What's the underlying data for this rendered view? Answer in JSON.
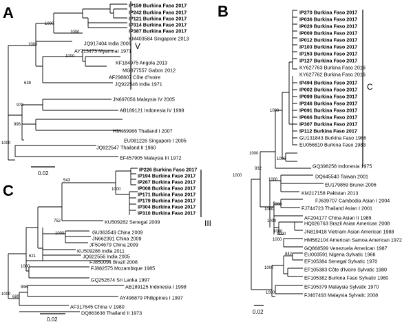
{
  "panels": {
    "A": {
      "label": "A",
      "group_label": "V",
      "scale_label": "0.02",
      "bootstrap": [
        "1000",
        "1000",
        "1000",
        "1000",
        "638",
        "978",
        "996",
        "1000"
      ],
      "taxa": [
        {
          "name": "IP159 Burkina Faso 2017",
          "bold": true
        },
        {
          "name": "IP242 Burkina Faso 2017",
          "bold": true
        },
        {
          "name": "IP121 Burkina Faso 2017",
          "bold": true
        },
        {
          "name": "IP314 Burkina Faso 2017",
          "bold": true
        },
        {
          "name": "IP387 Burkina Faso 2017",
          "bold": true
        },
        {
          "name": "KM403584 Singapore 2013",
          "bold": false
        },
        {
          "name": "JQ917404 India 2009",
          "bold": false
        },
        {
          "name": "AY713473 Myanmar 1971",
          "bold": false
        },
        {
          "name": "KF184975 Angola 2013",
          "bold": false
        },
        {
          "name": "MG877557 Gabon 2012",
          "bold": false
        },
        {
          "name": "AF298807 Côte d'Ivoire",
          "bold": false
        },
        {
          "name": "JQ922546 India 1971",
          "bold": false
        },
        {
          "name": "JN697056 Malaysia IV 2005",
          "bold": false
        },
        {
          "name": "AB189121 Indonesia IV 1998",
          "bold": false
        },
        {
          "name": "HM469966 Thailand I 2007",
          "bold": false
        },
        {
          "name": "EU081226 Singapore I 2005",
          "bold": false
        },
        {
          "name": "JQ922547 Thailand II 1960",
          "bold": false
        },
        {
          "name": "EF457905 Malaysia III 1972",
          "bold": false
        }
      ]
    },
    "B": {
      "label": "B",
      "group_label": "C",
      "scale_label": "0.02",
      "bootstrap": [
        "1000",
        "1000",
        "932",
        "1000",
        "1000",
        "1000",
        "1000",
        "1000",
        "1000",
        "1000",
        "1000",
        "1000",
        "842",
        "1000",
        "1000"
      ],
      "taxa": [
        {
          "name": "IP270 Burkina Faso 2017",
          "bold": true
        },
        {
          "name": "IP036 Burkina Faso 2017",
          "bold": true
        },
        {
          "name": "IP029 Burkina Faso 2017",
          "bold": true
        },
        {
          "name": "IP009 Burkina Faso 2017",
          "bold": true
        },
        {
          "name": "IP012 Burkina Faso 2017",
          "bold": true
        },
        {
          "name": "IP103 Burkina Faso 2017",
          "bold": true
        },
        {
          "name": "IP153 Burkina Faso 2017",
          "bold": true
        },
        {
          "name": "IP127 Burkina Faso 2017",
          "bold": true
        },
        {
          "name": "KY627763 Burkina Faso 2016",
          "bold": false
        },
        {
          "name": "KY627762 Burkina Faso 2016",
          "bold": false
        },
        {
          "name": "IP494 Burkina Faso 2017",
          "bold": true
        },
        {
          "name": "IP002 Burkina Faso 2017",
          "bold": true
        },
        {
          "name": "IP099 Burkina Faso 2017",
          "bold": true
        },
        {
          "name": "IP246 Burkina Faso 2017",
          "bold": true
        },
        {
          "name": "IP091 Burkina Faso 2017",
          "bold": true
        },
        {
          "name": "IP666 Burkina Faso 2017",
          "bold": true
        },
        {
          "name": "IP307 Burkina Faso 2017",
          "bold": true
        },
        {
          "name": "IP112 Burkina Faso 2017",
          "bold": true
        },
        {
          "name": "GU131843 Burkina Faso 1986",
          "bold": false
        },
        {
          "name": "EU056810 Burkina Faso 1983",
          "bold": false
        },
        {
          "name": "GQ398258 Indonesia 1975",
          "bold": false
        },
        {
          "name": "DQ645540 Taiwan 2001",
          "bold": false
        },
        {
          "name": "EU179859 Brunei 2006",
          "bold": false
        },
        {
          "name": "KM217158 Pakistan 2013",
          "bold": false
        },
        {
          "name": "FJ639707 Cambodia Asian I 2004",
          "bold": false
        },
        {
          "name": "FJ744723 Thailand Asian I 2001",
          "bold": false
        },
        {
          "name": "AF204177 China Asian II 1989",
          "bold": false
        },
        {
          "name": "HQ026763 Brazil Asian American 2008",
          "bold": false
        },
        {
          "name": "JN819418 Vietnam Asian American 1988",
          "bold": false
        },
        {
          "name": "HM582104 American Samoa American 1972",
          "bold": false
        },
        {
          "name": "GQ868599 Venezuela American 1987",
          "bold": false
        },
        {
          "name": "EU003591 Nigeria Sylvatic 1966",
          "bold": false
        },
        {
          "name": "EF105384 Senegal Sylvatic 1970",
          "bold": false
        },
        {
          "name": "EF105383 Côte d'Ivoire Sylvatic 1980",
          "bold": false
        },
        {
          "name": "EF105382 Burkina Faso Sylvatic 1980",
          "bold": false
        },
        {
          "name": "EF105379 Malaysia Sylvatic 1970",
          "bold": false
        },
        {
          "name": "FJ467493 Malaysia Sylvatic 2008",
          "bold": false
        }
      ]
    },
    "C": {
      "label": "C",
      "group_label": "III",
      "scale_label": "0.02",
      "bootstrap": [
        "543",
        "1000",
        "752",
        "1000",
        "621",
        "1000",
        "996",
        "680",
        "1000"
      ],
      "taxa": [
        {
          "name": "IP226 Burkina Faso 2017",
          "bold": true
        },
        {
          "name": "IP194 Burkina Faso 2017",
          "bold": true
        },
        {
          "name": "IP267 Burkina Faso 2017",
          "bold": true
        },
        {
          "name": "IP008 Burkina Faso 2017",
          "bold": true
        },
        {
          "name": "IP171 Burkina Faso 2017",
          "bold": true
        },
        {
          "name": "IP179 Burkina Faso 2017",
          "bold": true
        },
        {
          "name": "IP304 Burkina Faso 2017",
          "bold": true
        },
        {
          "name": "IP310 Burkina Faso 2017",
          "bold": true
        },
        {
          "name": "KU509282 Senegal 2009",
          "bold": false
        },
        {
          "name": "GU363549 China 2009",
          "bold": false
        },
        {
          "name": "JN662391 China 2009",
          "bold": false
        },
        {
          "name": "JF504679 China 2009",
          "bold": false
        },
        {
          "name": "KU509286 India 2011",
          "bold": false
        },
        {
          "name": "JQ922556 India 2005",
          "bold": false
        },
        {
          "name": "FJ850094 Brazil 2008",
          "bold": false
        },
        {
          "name": "FJ882575 Mozambique 1985",
          "bold": false
        },
        {
          "name": "GQ252674 Sri Lanka 1997",
          "bold": false
        },
        {
          "name": "AB189125 Indonesia I 1998",
          "bold": false
        },
        {
          "name": "AY496879 Philippines I 1997",
          "bold": false
        },
        {
          "name": "AF317645 China V 1980",
          "bold": false
        },
        {
          "name": "DQ863638 Thailand II 1973",
          "bold": false
        }
      ]
    }
  }
}
